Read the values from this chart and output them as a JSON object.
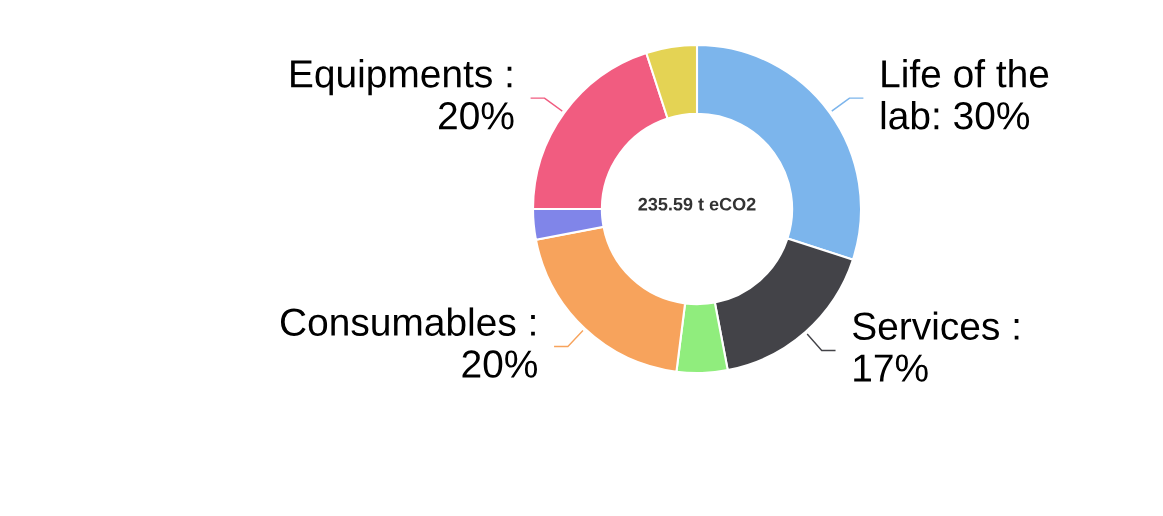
{
  "chart_data": {
    "type": "donut",
    "categories": [
      "Life of the\nlab: 30%",
      "Services :\n17%",
      null,
      "Consumables :\n20%",
      null,
      "Equipments :\n20%",
      null
    ],
    "values": [
      30,
      17,
      5,
      20,
      3,
      20,
      5
    ],
    "colors": [
      "#7cb5ec",
      "#434348",
      "#90ed7d",
      "#f7a35c",
      "#8085e9",
      "#f15c80",
      "#e4d354"
    ],
    "annotations": [
      "235.59 t eCO2"
    ]
  }
}
